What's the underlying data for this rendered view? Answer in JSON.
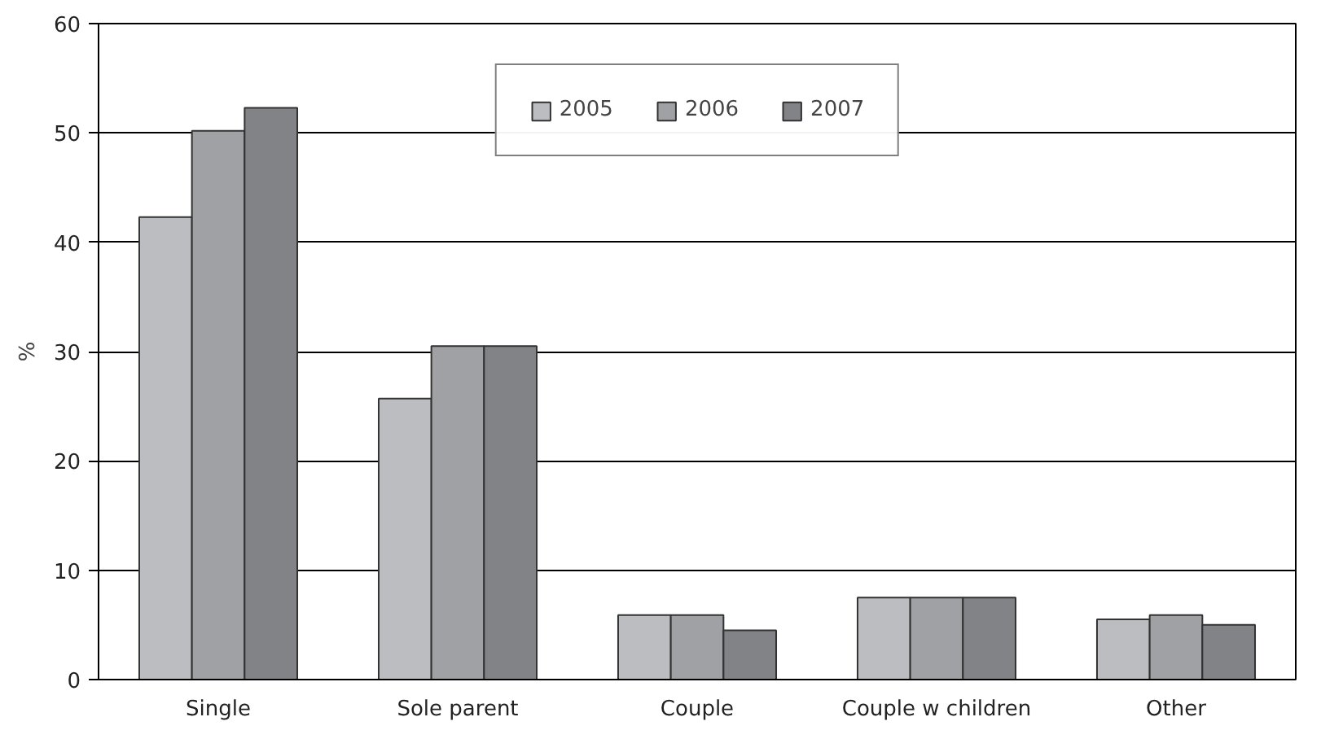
{
  "chart_data": {
    "type": "bar",
    "ylabel": "%",
    "categories": [
      "Single",
      "Sole parent",
      "Couple",
      "Couple w children",
      "Other"
    ],
    "series": [
      {
        "name": "2005",
        "color": "#bcbdc1",
        "values": [
          42.3,
          25.7,
          5.9,
          7.5,
          5.5
        ]
      },
      {
        "name": "2006",
        "color": "#a0a1a5",
        "values": [
          50.2,
          30.5,
          5.9,
          7.5,
          5.9
        ]
      },
      {
        "name": "2007",
        "color": "#828387",
        "values": [
          52.3,
          30.5,
          4.5,
          7.5,
          5.0
        ]
      }
    ],
    "ylim": [
      0,
      60
    ],
    "yticks": [
      0,
      10,
      20,
      30,
      40,
      50,
      60
    ],
    "grid": "y",
    "legend": "top"
  }
}
